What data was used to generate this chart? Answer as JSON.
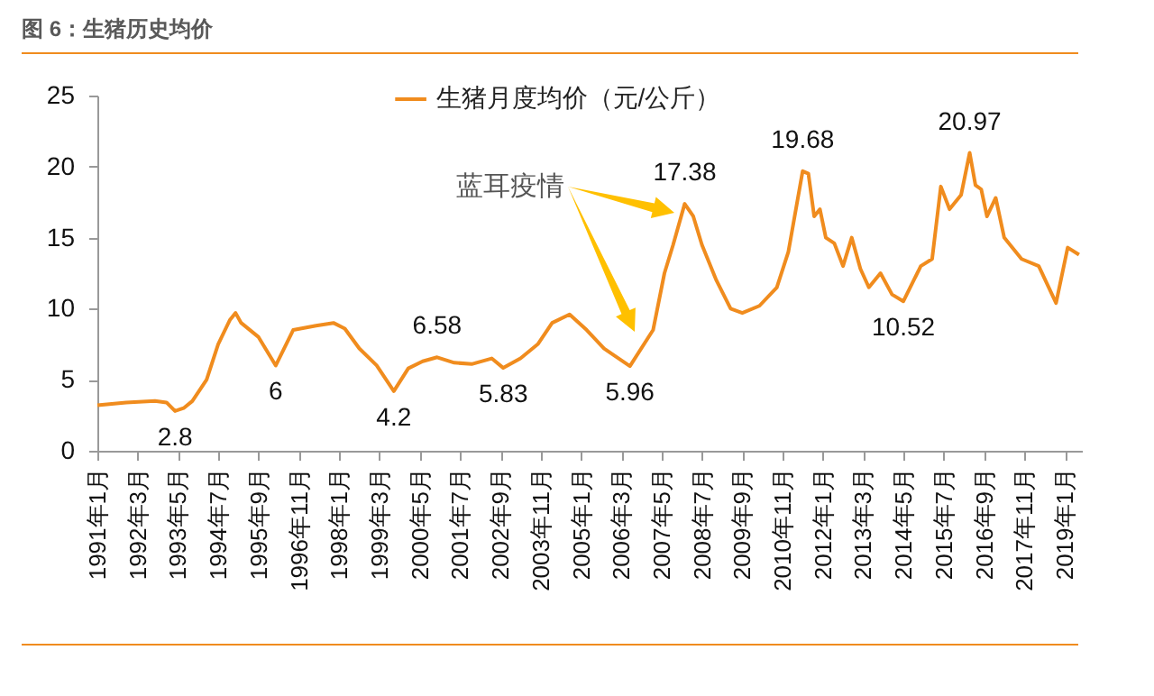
{
  "chart_data": {
    "type": "line",
    "title": "图 6：生猪历史均价",
    "x": [
      "1991-01",
      "1991-11",
      "1992-09",
      "1993-01",
      "1993-04",
      "1993-07",
      "1993-10",
      "1994-03",
      "1994-07",
      "1994-11",
      "1995-01",
      "1995-03",
      "1995-09",
      "1996-03",
      "1996-09",
      "1997-05",
      "1997-11",
      "1998-03",
      "1998-08",
      "1999-02",
      "1999-08",
      "2000-01",
      "2000-06",
      "2000-11",
      "2001-05",
      "2001-11",
      "2002-06",
      "2002-10",
      "2003-04",
      "2003-10",
      "2004-03",
      "2004-09",
      "2005-03",
      "2005-09",
      "2006-06",
      "2007-02",
      "2007-06",
      "2007-09",
      "2008-01",
      "2008-04",
      "2008-07",
      "2008-12",
      "2009-05",
      "2009-09",
      "2010-03",
      "2010-09",
      "2011-01",
      "2011-06",
      "2011-08",
      "2011-10",
      "2011-12",
      "2012-02",
      "2012-05",
      "2012-08",
      "2012-11",
      "2013-02",
      "2013-05",
      "2013-09",
      "2014-01",
      "2014-05",
      "2014-11",
      "2015-03",
      "2015-06",
      "2015-09",
      "2016-01",
      "2016-04",
      "2016-06",
      "2016-08",
      "2016-10",
      "2017-01",
      "2017-04",
      "2017-10",
      "2018-04",
      "2018-10",
      "2019-02",
      "2019-06"
    ],
    "series": [
      {
        "name": "生猪月度均价（元/公斤）",
        "color": "#f08c1e",
        "values": [
          3.2,
          3.4,
          3.5,
          3.4,
          2.8,
          3.0,
          3.5,
          5.0,
          7.5,
          9.2,
          9.7,
          9.0,
          8.0,
          6.0,
          8.5,
          8.8,
          9.0,
          8.6,
          7.2,
          6.0,
          4.2,
          5.8,
          6.3,
          6.58,
          6.2,
          6.1,
          6.5,
          5.83,
          6.5,
          7.5,
          9.0,
          9.6,
          8.5,
          7.2,
          5.96,
          8.5,
          12.5,
          14.5,
          17.38,
          16.5,
          14.5,
          12.0,
          10.0,
          9.7,
          10.2,
          11.5,
          14.0,
          19.68,
          19.5,
          16.5,
          17.0,
          15.0,
          14.6,
          13.0,
          15.0,
          12.8,
          11.5,
          12.5,
          11.0,
          10.52,
          13.0,
          13.5,
          18.6,
          17.0,
          18.0,
          20.97,
          18.7,
          18.4,
          16.5,
          17.8,
          15.0,
          13.5,
          13.0,
          10.4,
          14.3,
          13.8
        ]
      }
    ],
    "xlim": [
      "1991-01",
      "2019-07"
    ],
    "xticks": [
      {
        "value": "1991-01",
        "label": "1991年1月"
      },
      {
        "value": "1992-03",
        "label": "1992年3月"
      },
      {
        "value": "1993-05",
        "label": "1993年5月"
      },
      {
        "value": "1994-07",
        "label": "1994年7月"
      },
      {
        "value": "1995-09",
        "label": "1995年9月"
      },
      {
        "value": "1996-11",
        "label": "1996年11月"
      },
      {
        "value": "1998-01",
        "label": "1998年1月"
      },
      {
        "value": "1999-03",
        "label": "1999年3月"
      },
      {
        "value": "2000-05",
        "label": "2000年5月"
      },
      {
        "value": "2001-07",
        "label": "2001年7月"
      },
      {
        "value": "2002-09",
        "label": "2002年9月"
      },
      {
        "value": "2003-11",
        "label": "2003年11月"
      },
      {
        "value": "2005-01",
        "label": "2005年1月"
      },
      {
        "value": "2006-03",
        "label": "2006年3月"
      },
      {
        "value": "2007-05",
        "label": "2007年5月"
      },
      {
        "value": "2008-07",
        "label": "2008年7月"
      },
      {
        "value": "2009-09",
        "label": "2009年9月"
      },
      {
        "value": "2010-11",
        "label": "2010年11月"
      },
      {
        "value": "2012-01",
        "label": "2012年1月"
      },
      {
        "value": "2013-03",
        "label": "2013年3月"
      },
      {
        "value": "2014-05",
        "label": "2014年5月"
      },
      {
        "value": "2015-07",
        "label": "2015年7月"
      },
      {
        "value": "2016-09",
        "label": "2016年9月"
      },
      {
        "value": "2017-11",
        "label": "2017年11月"
      },
      {
        "value": "2019-01",
        "label": "2019年1月"
      }
    ],
    "ylim": [
      0,
      25
    ],
    "yticks": [
      0,
      5,
      10,
      15,
      20,
      25
    ],
    "grid": false,
    "legend": "top",
    "annotations": [
      "蓝耳疫情",
      {
        "text": "2.8",
        "x": "1993-04",
        "y": 2.8
      },
      {
        "text": "6",
        "x": "1996-03",
        "y": 6
      },
      {
        "text": "4.2",
        "x": "1999-08",
        "y": 4.2
      },
      {
        "text": "6.58",
        "x": "2000-11",
        "y": 6.58
      },
      {
        "text": "5.83",
        "x": "2002-10",
        "y": 5.83
      },
      {
        "text": "5.96",
        "x": "2006-06",
        "y": 5.96
      },
      {
        "text": "17.38",
        "x": "2008-01",
        "y": 17.38
      },
      {
        "text": "19.68",
        "x": "2011-06",
        "y": 19.68
      },
      {
        "text": "10.52",
        "x": "2014-05",
        "y": 10.52
      },
      {
        "text": "20.97",
        "x": "2016-04",
        "y": 20.97
      }
    ]
  }
}
